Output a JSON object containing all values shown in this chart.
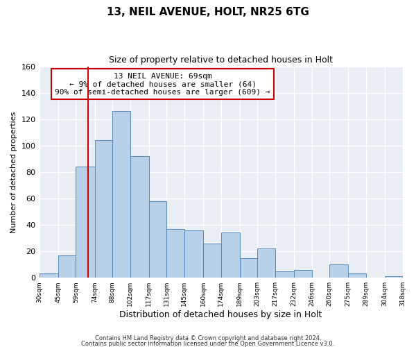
{
  "title": "13, NEIL AVENUE, HOLT, NR25 6TG",
  "subtitle": "Size of property relative to detached houses in Holt",
  "xlabel": "Distribution of detached houses by size in Holt",
  "ylabel": "Number of detached properties",
  "bin_labels": [
    "30sqm",
    "45sqm",
    "59sqm",
    "74sqm",
    "88sqm",
    "102sqm",
    "117sqm",
    "131sqm",
    "145sqm",
    "160sqm",
    "174sqm",
    "189sqm",
    "203sqm",
    "217sqm",
    "232sqm",
    "246sqm",
    "260sqm",
    "275sqm",
    "289sqm",
    "304sqm",
    "318sqm"
  ],
  "bar_heights": [
    3,
    17,
    84,
    104,
    126,
    92,
    58,
    37,
    36,
    26,
    34,
    15,
    22,
    5,
    6,
    0,
    10,
    3,
    0,
    1
  ],
  "bin_edges": [
    30,
    45,
    59,
    74,
    88,
    102,
    117,
    131,
    145,
    160,
    174,
    189,
    203,
    217,
    232,
    246,
    260,
    275,
    289,
    304,
    318
  ],
  "bar_color": "#b8d0e8",
  "bar_edge_color": "#5588bb",
  "vline_x": 69,
  "vline_color": "#cc0000",
  "ylim": [
    0,
    160
  ],
  "yticks": [
    0,
    20,
    40,
    60,
    80,
    100,
    120,
    140,
    160
  ],
  "annotation_line1": "13 NEIL AVENUE: 69sqm",
  "annotation_line2": "← 9% of detached houses are smaller (64)",
  "annotation_line3": "90% of semi-detached houses are larger (609) →",
  "annotation_box_color": "#ffffff",
  "annotation_box_edge_color": "#cc0000",
  "footer1": "Contains HM Land Registry data © Crown copyright and database right 2024.",
  "footer2": "Contains public sector information licensed under the Open Government Licence v3.0.",
  "bg_color": "#ffffff",
  "plot_bg_color": "#e8eef4",
  "grid_color": "#ffffff"
}
